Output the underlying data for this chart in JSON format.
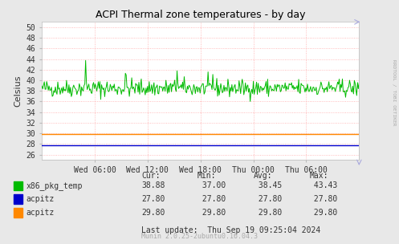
{
  "title": "ACPI Thermal zone temperatures - by day",
  "ylabel": "Celsius",
  "right_label": "RRDTOOL / TOBI OETIKER",
  "ylim": [
    25,
    51
  ],
  "yticks": [
    26,
    28,
    30,
    32,
    34,
    36,
    38,
    40,
    42,
    44,
    46,
    48,
    50
  ],
  "bg_color": "#e8e8e8",
  "plot_bg_color": "#ffffff",
  "grid_color": "#ffaaaa",
  "x_labels": [
    "Wed 06:00",
    "Wed 12:00",
    "Wed 18:00",
    "Thu 00:00",
    "Thu 06:00"
  ],
  "x_tick_pos": [
    0.167,
    0.333,
    0.5,
    0.667,
    0.833
  ],
  "green_color": "#00bb00",
  "blue_color": "#0000cc",
  "orange_color": "#ff8800",
  "blue_const": 27.8,
  "orange_const": 29.8,
  "legend": [
    {
      "label": "x86_pkg_temp",
      "color": "#00bb00",
      "cur": "38.88",
      "min": " 37.00",
      "avg": " 38.45",
      "max": " 43.43"
    },
    {
      "label": "acpitz",
      "color": "#0000cc",
      "cur": "27.80",
      "min": " 27.80",
      "avg": " 27.80",
      "max": " 27.80"
    },
    {
      "label": "acpitz",
      "color": "#ff8800",
      "cur": "29.80",
      "min": " 29.80",
      "avg": " 29.80",
      "max": " 29.80"
    }
  ],
  "footer": "Last update:  Thu Sep 19 09:25:04 2024",
  "munin_version": "Munin 2.0.25-2ubuntu0.16.04.3",
  "seed": 42,
  "n_points": 400
}
